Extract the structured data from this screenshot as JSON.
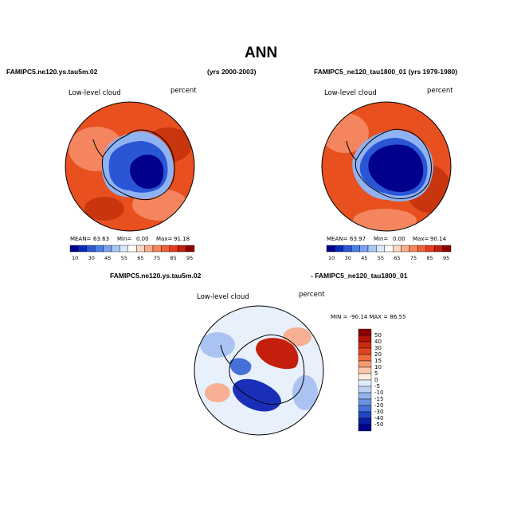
{
  "figure": {
    "title": "ANN"
  },
  "panel_left": {
    "case_name": "FAMIPC5.ne120.ys.tau5m.02",
    "years": "(yrs 2000-2003)",
    "variable": "Low-level cloud",
    "units": "percent",
    "stats": {
      "mean_label": "MEAN=",
      "mean": "63.63",
      "min_label": "Min=",
      "min": "0.00",
      "max_label": "Max=",
      "max": "91.18"
    }
  },
  "panel_right": {
    "case_name": "FAMIPC5_ne120_tau1800_01 (yrs 1979-1980)",
    "variable": "Low-level cloud",
    "units": "percent",
    "stats": {
      "mean_label": "MEAN=",
      "mean": "63.97",
      "min_label": "Min=",
      "min": "0.00",
      "max_label": "Max=",
      "max": "90.14"
    }
  },
  "panel_diff": {
    "case_a": "FAMIPC5.ne120.ys.tau5m.02",
    "case_b": "- FAMIPC5_ne120_tau1800_01",
    "variable": "Low-level cloud",
    "units": "percent",
    "minmax": "MIN = -90.14 MAX =  86.55"
  },
  "colorbar_abs": {
    "colors": [
      "#00008c",
      "#0a2ab4",
      "#2a56d6",
      "#4d7de8",
      "#7aa0f0",
      "#a9c6f8",
      "#dbe8fc",
      "#ffffff",
      "#fcd7c2",
      "#f9ad8a",
      "#f5855e",
      "#f0603a",
      "#e23c1d",
      "#c41e0c",
      "#8c0000"
    ],
    "labels": [
      "10",
      "30",
      "45",
      "55",
      "65",
      "75",
      "85",
      "95"
    ]
  },
  "colorbar_diff": {
    "colors": [
      "#8c0000",
      "#b01205",
      "#cc2a10",
      "#e04420",
      "#ef6b3e",
      "#f59a72",
      "#fac6a9",
      "#fdebdf",
      "#e2edfb",
      "#bcd2f5",
      "#93b3ed",
      "#6b92e3",
      "#4470d8",
      "#2147c4",
      "#0a1fa6",
      "#00008c"
    ],
    "labels": [
      "50",
      "40",
      "30",
      "20",
      "15",
      "10",
      "5",
      "0",
      "-5",
      "-10",
      "-15",
      "-20",
      "-30",
      "-40",
      "-50"
    ]
  },
  "map_colors": {
    "ocean_base": "#e8501f",
    "ocean_dark": "#c9350f",
    "ocean_light": "#f5855e",
    "ice_dark": "#00008c",
    "ice_mid": "#2a56d6",
    "ice_light": "#8fb2f2",
    "diff_neutral": "#e8f0fb",
    "diff_red": "#c41e0c",
    "diff_blue": "#1a2fb8"
  }
}
